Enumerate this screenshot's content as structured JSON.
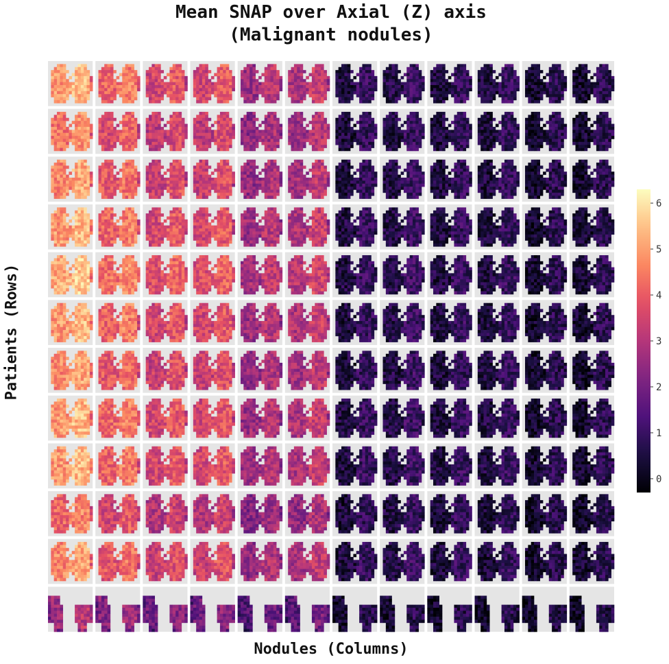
{
  "chart_data": {
    "type": "heatmap",
    "title_line1": "Mean SNAP over Axial (Z) axis",
    "title_line2": "(Malignant nodules)",
    "xlabel": "Nodules (Columns)",
    "ylabel": "Patients (Rows)",
    "n_rows": 12,
    "n_cols": 12,
    "colormap": "magma",
    "missing_color": "#e5e5e5",
    "colorbar": {
      "range": [
        -0.3,
        6.3
      ],
      "ticks": [
        "0",
        "1",
        "2",
        "3",
        "4",
        "5",
        "6"
      ]
    },
    "column_mean_intensity": [
      5.0,
      4.2,
      3.6,
      3.6,
      2.7,
      3.0,
      0.6,
      0.7,
      0.6,
      0.6,
      0.4,
      0.4
    ],
    "row_factor": [
      1.0,
      0.9,
      0.95,
      1.0,
      1.05,
      1.0,
      0.95,
      1.0,
      1.0,
      0.85,
      0.95,
      0.55
    ]
  }
}
